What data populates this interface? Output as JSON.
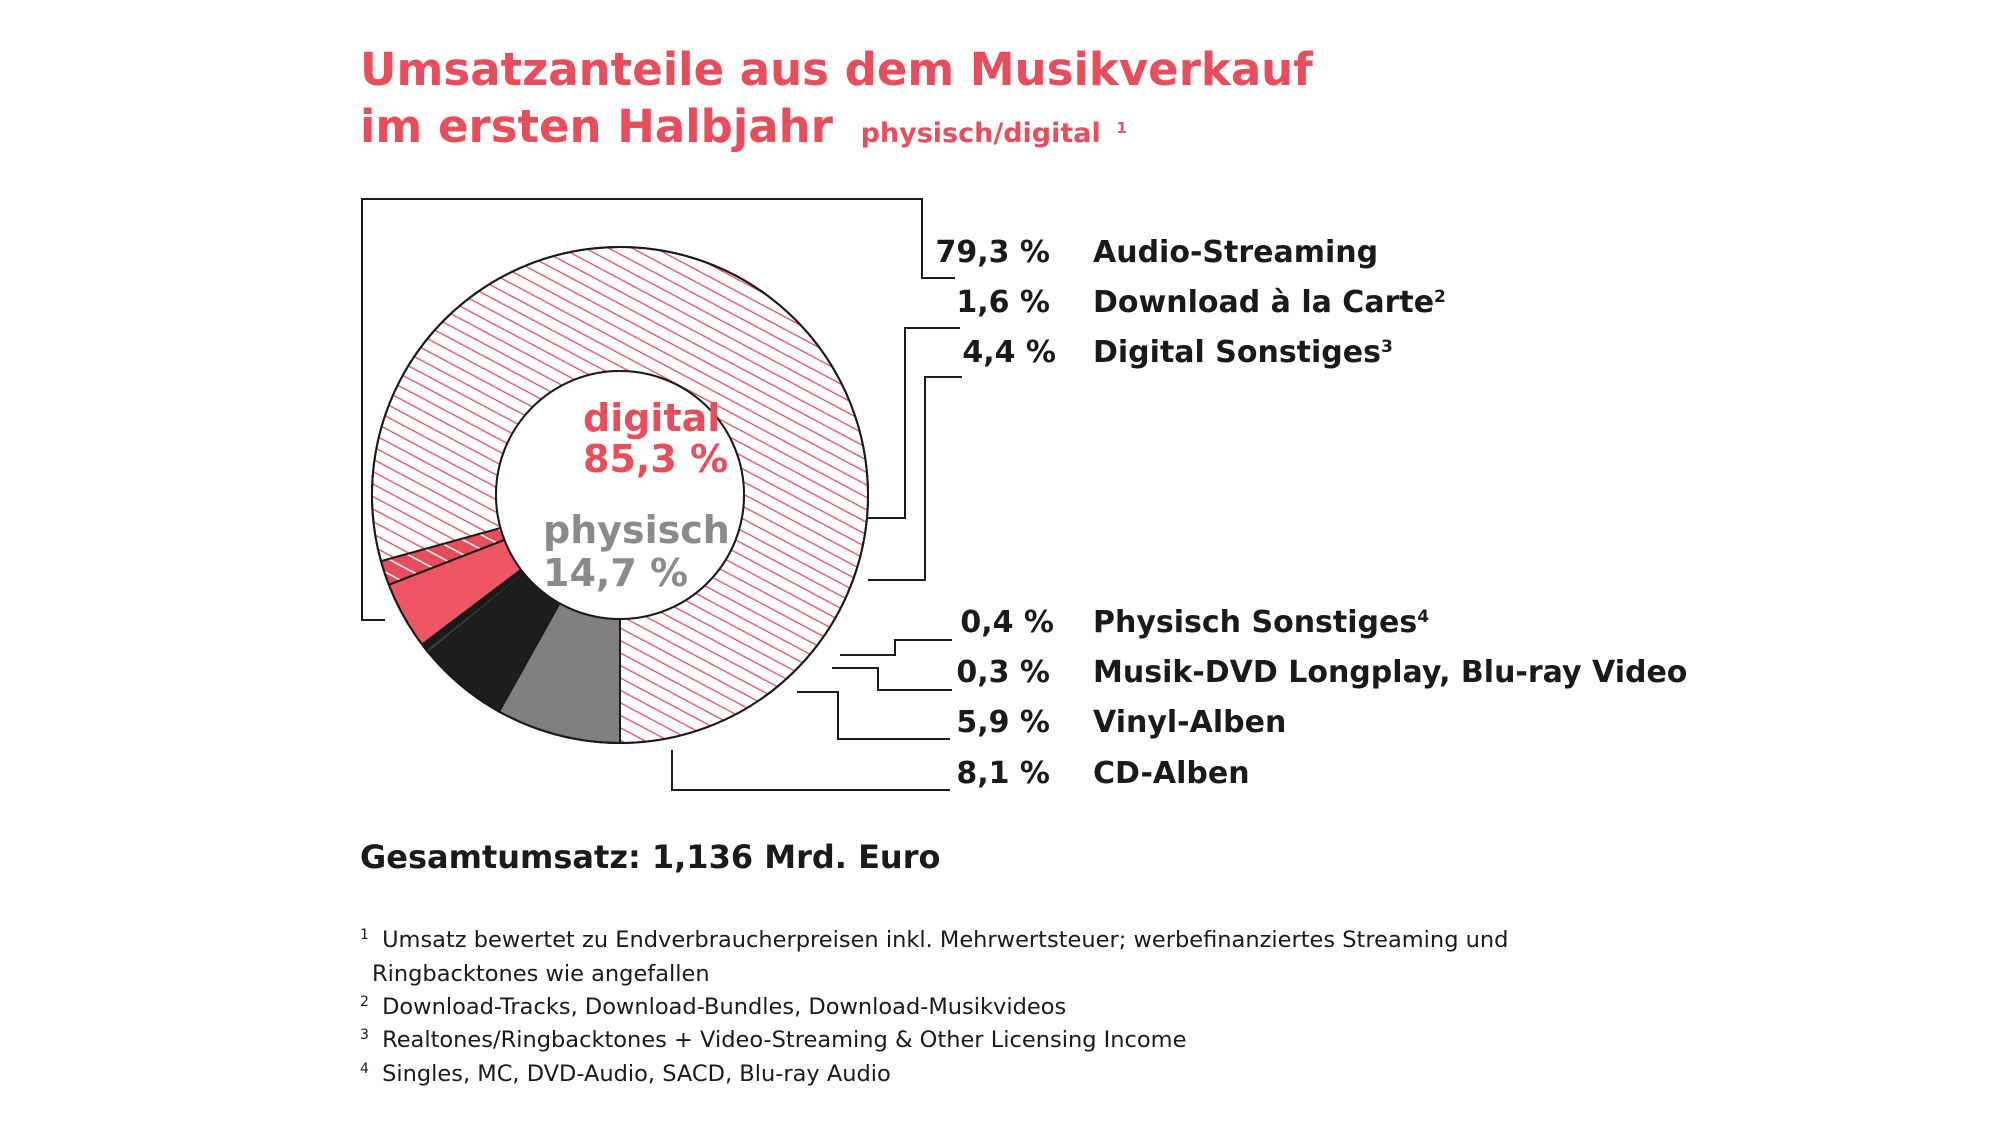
{
  "title": {
    "line1": "Umsatzanteile aus dem Musikverkauf",
    "line2": "im ersten Halbjahr",
    "subtitle": "physisch/digital",
    "subtitle_marker": "1"
  },
  "center": {
    "digital_label": "digital",
    "digital_value": "85,3 %",
    "physisch_label": "physisch",
    "physisch_value": "14,7 %"
  },
  "colors": {
    "accent": "#e84d5c",
    "hatch": "#e84d5c",
    "download": "#e84d5c",
    "digital_sonstiges": "#ee5663",
    "physisch_sonstiges": "#1a1a1a",
    "dvd": "#3a3a3a",
    "vinyl": "#1e1e1e",
    "cd": "#808080",
    "grey_text": "#8a8a8a",
    "outline": "#1a1a1a"
  },
  "total": "Gesamtumsatz: 1,136 Mrd. Euro",
  "footnotes": [
    {
      "marker": "1",
      "lines": [
        "Umsatz bewertet zu Endverbraucherpreisen inkl. Mehrwertsteuer; werbefinanziertes Streaming und",
        "Ringbacktones wie angefallen"
      ]
    },
    {
      "marker": "2",
      "lines": [
        "Download-Tracks, Download-Bundles, Download-Musikvideos"
      ]
    },
    {
      "marker": "3",
      "lines": [
        "Realtones/Ringbacktones + Video-Streaming & Other Licensing Income"
      ]
    },
    {
      "marker": "4",
      "lines": [
        "Singles, MC, DVD-Audio, SACD, Blu-ray Audio"
      ]
    }
  ],
  "chart_data": {
    "type": "pie",
    "title": "Umsatzanteile aus dem Musikverkauf im ersten Halbjahr physisch/digital",
    "legend": "right",
    "categories": [
      "Audio-Streaming",
      "Download à la Carte",
      "Digital Sonstiges",
      "Physisch Sonstiges",
      "Musik-DVD Longplay, Blu-ray Video",
      "Vinyl-Alben",
      "CD-Alben"
    ],
    "values": [
      79.3,
      1.6,
      4.4,
      0.4,
      0.3,
      5.9,
      8.1
    ],
    "value_labels": [
      "79,3 %",
      "1,6 %",
      "4,4 %",
      "0,4 %",
      "0,3 %",
      "5,9 %",
      "8,1 %"
    ],
    "label_markers": [
      "",
      "2",
      "3",
      "4",
      "",
      "",
      ""
    ],
    "groups": [
      {
        "name": "digital",
        "share": 85.3
      },
      {
        "name": "physisch",
        "share": 14.7
      }
    ]
  }
}
